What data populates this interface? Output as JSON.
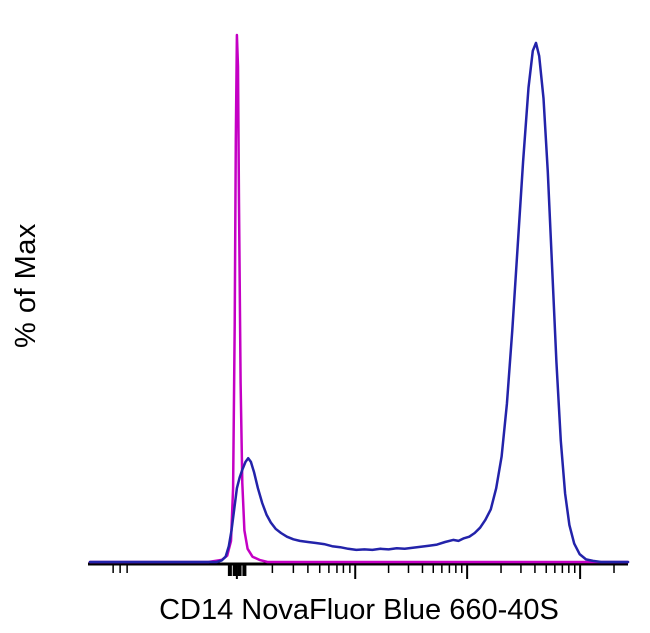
{
  "chart_data": {
    "type": "line",
    "subtype": "flow-cytometry-histogram-overlay",
    "title": "",
    "xlabel": "CD14 NovaFluor Blue 660-40S",
    "ylabel": "% of Max",
    "grid": false,
    "legend": null,
    "background": "#ffffff",
    "axis_color": "#000000",
    "x_axis": {
      "scale": "log-like, no numeric tick labels visible",
      "range_norm": [
        0,
        100
      ],
      "tick_labels": []
    },
    "y_axis": {
      "range_percent": [
        0,
        100
      ],
      "tick_labels": []
    },
    "ticks": {
      "major": [
        27.3,
        49.3,
        70.1,
        91.1
      ],
      "bold": [
        26.0,
        26.9,
        27.8,
        28.7
      ],
      "minor": [
        4.3,
        5.6,
        6.9,
        33.9,
        37.8,
        40.5,
        42.7,
        44.4,
        45.9,
        47.1,
        48.3,
        55.5,
        59.2,
        61.8,
        63.8,
        65.4,
        66.8,
        68.0,
        69.1,
        76.4,
        80.1,
        82.7,
        84.8,
        86.4,
        87.8,
        89.0,
        90.1,
        97.4
      ]
    },
    "series": [
      {
        "name": "magenta-control-curve",
        "color": "#c400c4",
        "peak_x_norm": 27.3,
        "peak_y_percent": 100,
        "points": [
          [
            0,
            0
          ],
          [
            22,
            0
          ],
          [
            24.5,
            0.4
          ],
          [
            25.5,
            1.2
          ],
          [
            26.2,
            4
          ],
          [
            26.6,
            14
          ],
          [
            26.9,
            45
          ],
          [
            27.1,
            80
          ],
          [
            27.3,
            100
          ],
          [
            27.5,
            94
          ],
          [
            27.7,
            68
          ],
          [
            28,
            34
          ],
          [
            28.3,
            15
          ],
          [
            28.7,
            6
          ],
          [
            29.3,
            2.5
          ],
          [
            30.2,
            1
          ],
          [
            31.5,
            0.4
          ],
          [
            33,
            0
          ],
          [
            100,
            0
          ]
        ]
      },
      {
        "name": "blue-stained-curve",
        "color": "#2323aa",
        "peak_x_norm": 82.9,
        "peak_y_percent": 98.5,
        "points": [
          [
            0,
            0
          ],
          [
            23.5,
            0
          ],
          [
            24.5,
            0.3
          ],
          [
            25.2,
            1
          ],
          [
            25.8,
            3
          ],
          [
            26.3,
            6
          ],
          [
            26.8,
            10
          ],
          [
            27.3,
            14
          ],
          [
            27.8,
            16
          ],
          [
            28.3,
            17.5
          ],
          [
            28.9,
            19
          ],
          [
            29.4,
            19.7
          ],
          [
            29.9,
            19
          ],
          [
            30.5,
            17
          ],
          [
            31.2,
            14
          ],
          [
            32,
            11.2
          ],
          [
            32.8,
            9
          ],
          [
            33.6,
            7.5
          ],
          [
            34.5,
            6.3
          ],
          [
            35.5,
            5.5
          ],
          [
            36.6,
            4.8
          ],
          [
            37.8,
            4.3
          ],
          [
            39,
            4
          ],
          [
            40.5,
            3.8
          ],
          [
            42,
            3.6
          ],
          [
            43.5,
            3.4
          ],
          [
            45,
            3
          ],
          [
            46.5,
            2.8
          ],
          [
            48,
            2.5
          ],
          [
            49.5,
            2.3
          ],
          [
            51,
            2.4
          ],
          [
            52.5,
            2.3
          ],
          [
            54,
            2.5
          ],
          [
            55.5,
            2.4
          ],
          [
            57,
            2.6
          ],
          [
            58.5,
            2.5
          ],
          [
            60,
            2.7
          ],
          [
            61.5,
            2.9
          ],
          [
            63,
            3.1
          ],
          [
            64.5,
            3.3
          ],
          [
            66,
            3.8
          ],
          [
            67.5,
            4.2
          ],
          [
            68.5,
            4
          ],
          [
            69.5,
            4.5
          ],
          [
            70.5,
            4.8
          ],
          [
            71.5,
            5.5
          ],
          [
            72.5,
            6.5
          ],
          [
            73.5,
            8
          ],
          [
            74.5,
            10
          ],
          [
            75.5,
            14
          ],
          [
            76.5,
            20
          ],
          [
            77.5,
            30
          ],
          [
            78.5,
            44
          ],
          [
            79.5,
            60
          ],
          [
            80.5,
            76
          ],
          [
            81.5,
            90
          ],
          [
            82.3,
            97
          ],
          [
            82.9,
            98.5
          ],
          [
            83.5,
            96
          ],
          [
            84.3,
            88
          ],
          [
            85.1,
            74
          ],
          [
            85.9,
            56
          ],
          [
            86.7,
            38
          ],
          [
            87.5,
            23
          ],
          [
            88.3,
            13
          ],
          [
            89.1,
            7
          ],
          [
            90,
            3.5
          ],
          [
            91,
            1.5
          ],
          [
            92.2,
            0.5
          ],
          [
            93.5,
            0.2
          ],
          [
            95,
            0
          ],
          [
            100,
            0
          ]
        ]
      }
    ]
  }
}
